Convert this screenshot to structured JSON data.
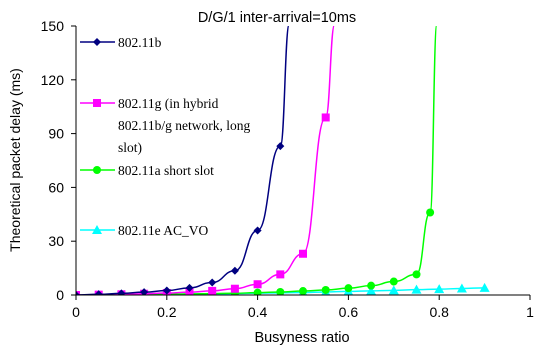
{
  "chart_data": {
    "type": "line",
    "title": "D/G/1 inter-arrival=10ms",
    "xlabel": "Busyness ratio",
    "ylabel": "Theoretical packet delay (ms)",
    "xlim": [
      0,
      1
    ],
    "ylim": [
      0,
      150
    ],
    "x_ticks": [
      0,
      0.2,
      0.4,
      0.6,
      0.8,
      1
    ],
    "x_tick_labels": [
      "0",
      "0.2",
      "0.4",
      "0.6",
      "0.8",
      "1"
    ],
    "y_ticks": [
      0,
      30,
      60,
      90,
      120,
      150
    ],
    "y_tick_labels": [
      "0",
      "30",
      "60",
      "90",
      "120",
      "150"
    ],
    "grid": false,
    "legend_position": "left inside",
    "series": [
      {
        "name": "802.11b",
        "legend_lines": [
          "802.11b"
        ],
        "color": "#000080",
        "marker": "diamond",
        "x": [
          0,
          0.05,
          0.1,
          0.15,
          0.2,
          0.25,
          0.3,
          0.35,
          0.4,
          0.45
        ],
        "y": [
          0,
          0.4,
          0.9,
          1.6,
          2.5,
          4,
          7,
          13.5,
          36,
          83
        ],
        "curve_end": {
          "x": 0.47,
          "y": 150
        }
      },
      {
        "name": "802.11g (in hybrid 802.11b/g network, long slot)",
        "legend_lines": [
          "802.11g (in hybrid",
          "802.11b/g network, long",
          "slot)"
        ],
        "color": "#ff00ff",
        "marker": "square",
        "x": [
          0,
          0.05,
          0.1,
          0.15,
          0.2,
          0.25,
          0.3,
          0.35,
          0.4,
          0.45,
          0.5,
          0.55
        ],
        "y": [
          0,
          0.2,
          0.4,
          0.7,
          1.1,
          1.6,
          2.3,
          3.5,
          6,
          11.5,
          23,
          99
        ],
        "curve_end": {
          "x": 0.57,
          "y": 150
        }
      },
      {
        "name": "802.11a short slot",
        "legend_lines": [
          "802.11a short slot"
        ],
        "color": "#00ff00",
        "marker": "circle",
        "x": [
          0,
          0.05,
          0.1,
          0.15,
          0.2,
          0.25,
          0.3,
          0.35,
          0.4,
          0.45,
          0.5,
          0.55,
          0.6,
          0.65,
          0.7,
          0.75,
          0.78
        ],
        "y": [
          0,
          0.1,
          0.2,
          0.3,
          0.4,
          0.6,
          0.8,
          1,
          1.3,
          1.7,
          2.2,
          2.8,
          3.8,
          5.2,
          7.5,
          11.5,
          46
        ],
        "curve_end": {
          "x": 0.795,
          "y": 150
        }
      },
      {
        "name": "802.11e AC_VO",
        "legend_lines": [
          "802.11e AC_VO"
        ],
        "color": "#00ffff",
        "marker": "triangle",
        "x": [
          0,
          0.05,
          0.1,
          0.15,
          0.2,
          0.25,
          0.3,
          0.35,
          0.4,
          0.45,
          0.5,
          0.55,
          0.6,
          0.65,
          0.7,
          0.75,
          0.8,
          0.85,
          0.9
        ],
        "y": [
          0,
          0.1,
          0.2,
          0.3,
          0.4,
          0.5,
          0.6,
          0.8,
          1,
          1.2,
          1.4,
          1.7,
          2,
          2.3,
          2.6,
          3,
          3.3,
          3.6,
          4
        ]
      }
    ]
  }
}
